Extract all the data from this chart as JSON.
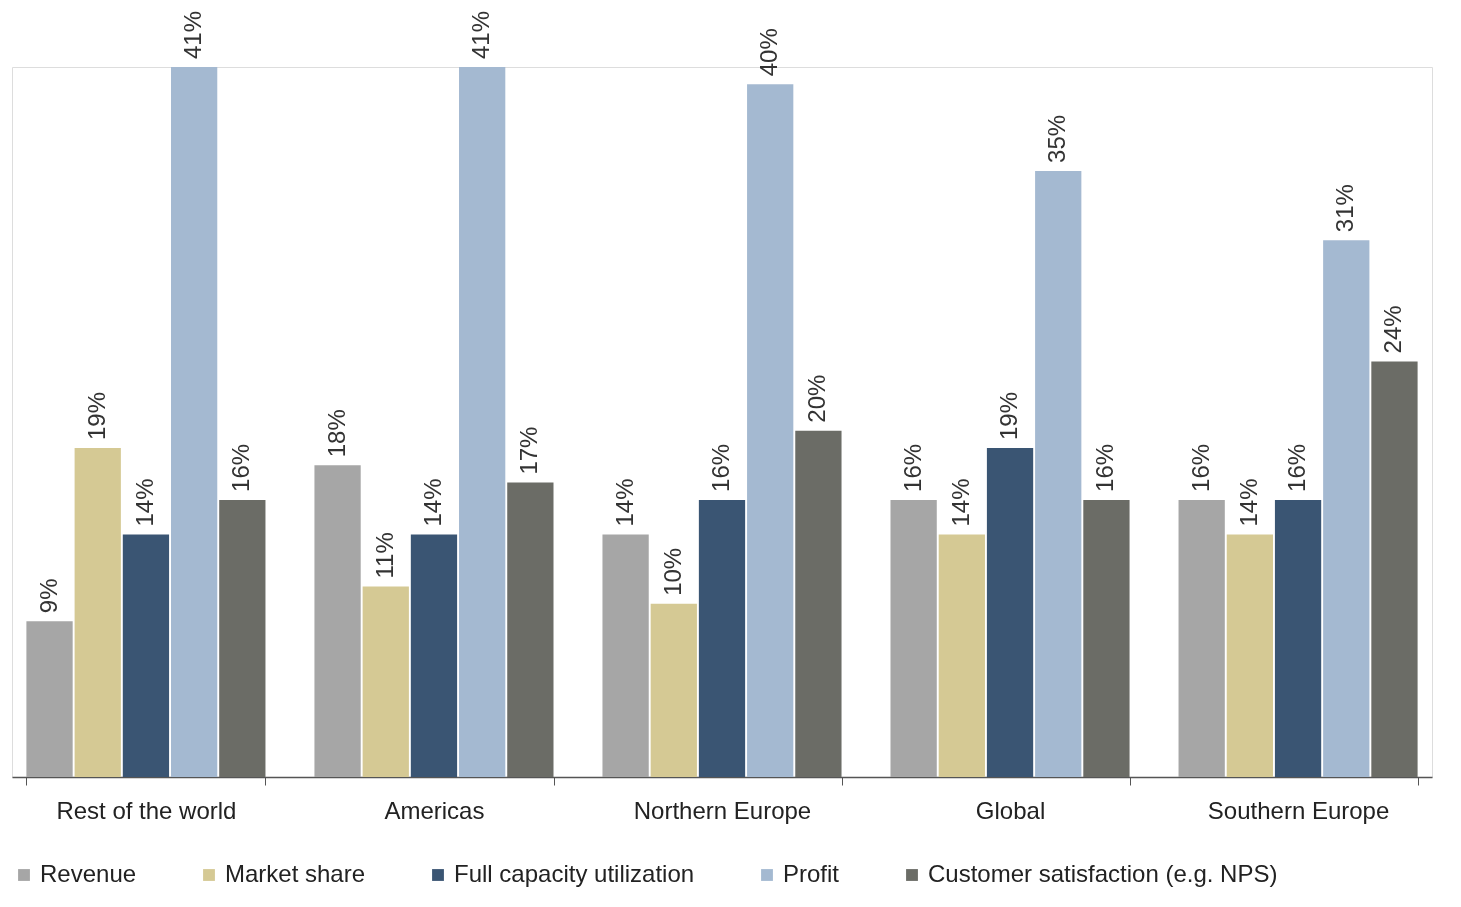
{
  "chart_data": {
    "type": "bar",
    "categories": [
      "Rest of the world",
      "Americas",
      "Northern Europe",
      "Global",
      "Southern Europe"
    ],
    "series": [
      {
        "name": "Revenue",
        "color": "#a6a6a6",
        "values": [
          9,
          18,
          14,
          16,
          16
        ],
        "value_labels": [
          "9%",
          "18%",
          "14%",
          "16%",
          "16%"
        ]
      },
      {
        "name": "Market share",
        "color": "#d5c994",
        "values": [
          19,
          11,
          10,
          14,
          14
        ],
        "value_labels": [
          "19%",
          "11%",
          "10%",
          "14%",
          "14%"
        ]
      },
      {
        "name": "Full capacity utilization",
        "color": "#3a5573",
        "values": [
          14,
          14,
          16,
          19,
          16
        ],
        "value_labels": [
          "14%",
          "14%",
          "16%",
          "19%",
          "16%"
        ]
      },
      {
        "name": "Profit",
        "color": "#a4b9d1",
        "values": [
          41,
          41,
          40,
          35,
          31
        ],
        "value_labels": [
          "41%",
          "41%",
          "40%",
          "35%",
          "31%"
        ]
      },
      {
        "name": "Customer satisfaction (e.g. NPS)",
        "color": "#6b6c66",
        "values": [
          16,
          17,
          20,
          16,
          24
        ],
        "value_labels": [
          "16%",
          "17%",
          "20%",
          "16%",
          "24%"
        ]
      }
    ],
    "legend": "bottom",
    "grid": false,
    "tick_labels": "x"
  }
}
